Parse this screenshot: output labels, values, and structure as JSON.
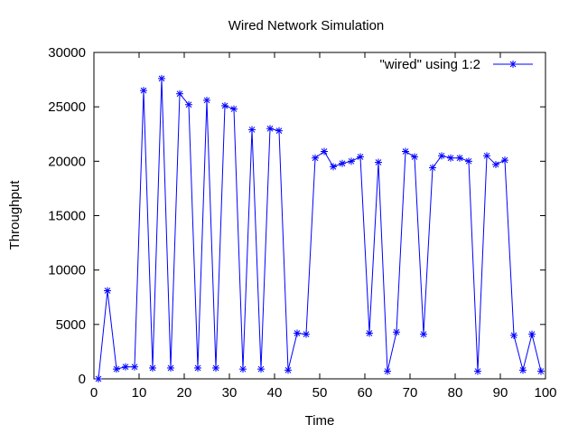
{
  "chart_data": {
    "type": "line",
    "title": "Wired Network Simulation",
    "xlabel": "Time",
    "ylabel": "Throughput",
    "xlim": [
      0,
      100
    ],
    "ylim": [
      0,
      30000
    ],
    "xticks": [
      0,
      10,
      20,
      30,
      40,
      50,
      60,
      70,
      80,
      90,
      100
    ],
    "yticks": [
      0,
      5000,
      10000,
      15000,
      20000,
      25000,
      30000
    ],
    "grid": false,
    "legend_position": "top-right",
    "series": [
      {
        "name": "\"wired\" using 1:2",
        "color": "#0000ff",
        "marker": "asterisk",
        "x": [
          1,
          3,
          5,
          7,
          9,
          11,
          13,
          15,
          17,
          19,
          21,
          23,
          25,
          27,
          29,
          31,
          33,
          35,
          37,
          39,
          41,
          43,
          45,
          47,
          49,
          51,
          53,
          55,
          57,
          59,
          61,
          63,
          65,
          67,
          69,
          71,
          73,
          75,
          77,
          79,
          81,
          83,
          85,
          87,
          89,
          91,
          93,
          95,
          97,
          99
        ],
        "y": [
          0,
          8100,
          900,
          1100,
          1100,
          26500,
          1000,
          27600,
          1000,
          26200,
          25200,
          1000,
          25600,
          1000,
          25100,
          24800,
          900,
          22900,
          900,
          23000,
          22800,
          800,
          4200,
          4100,
          20300,
          20900,
          19500,
          19800,
          20000,
          20400,
          4200,
          19900,
          700,
          4300,
          20900,
          20400,
          4100,
          19400,
          20500,
          20300,
          20300,
          20000,
          700,
          20500,
          19700,
          20100,
          4000,
          800,
          4100,
          700
        ]
      }
    ]
  }
}
